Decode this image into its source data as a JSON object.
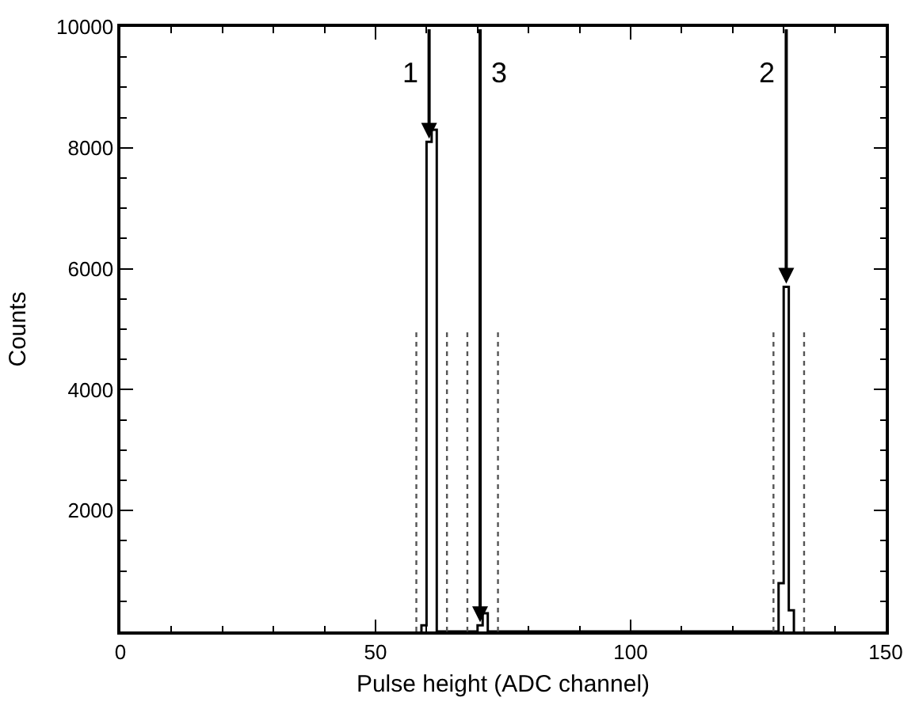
{
  "chart_data": {
    "type": "histogram",
    "xlabel": "Pulse height (ADC channel)",
    "ylabel": "Counts",
    "bins": [
      59,
      60,
      61,
      62,
      63,
      64,
      65,
      66,
      67,
      68,
      69,
      70,
      71,
      72,
      73,
      74,
      75,
      76,
      77,
      78,
      79,
      80,
      81,
      82,
      83,
      84,
      85,
      86,
      87,
      88,
      89,
      90,
      91,
      92,
      93,
      94,
      95,
      96,
      97,
      98,
      99,
      100,
      101,
      102,
      103,
      104,
      105,
      106,
      107,
      108,
      109,
      110,
      111,
      112,
      113,
      114,
      115,
      116,
      117,
      118,
      119,
      120,
      121,
      122,
      123,
      124,
      125,
      126,
      127,
      128,
      129,
      130,
      131,
      132
    ],
    "values": [
      100,
      8100,
      8300,
      0,
      0,
      0,
      0,
      0,
      0,
      0,
      0,
      100,
      300,
      0,
      0,
      0,
      0,
      0,
      0,
      0,
      0,
      0,
      0,
      0,
      0,
      0,
      0,
      0,
      0,
      0,
      0,
      0,
      0,
      0,
      0,
      0,
      0,
      0,
      0,
      0,
      0,
      0,
      0,
      0,
      0,
      0,
      0,
      0,
      0,
      0,
      0,
      0,
      0,
      0,
      0,
      0,
      0,
      0,
      0,
      0,
      0,
      0,
      0,
      0,
      0,
      0,
      0,
      0,
      0,
      0,
      800,
      5700,
      350
    ],
    "color": "#000000",
    "series": [
      {
        "type": "line",
        "color": "#555555",
        "line_style": "dotted",
        "x": [
          58,
          58,
          null,
          64,
          64,
          null,
          68,
          68,
          null,
          74,
          74,
          null,
          128,
          128,
          null,
          134,
          134
        ],
        "values": [
          0,
          5000,
          null,
          0,
          5000,
          null,
          0,
          5000,
          null,
          0,
          5000,
          null,
          0,
          5000,
          null,
          0,
          5000
        ]
      }
    ],
    "annotations": [
      {
        "text": "1",
        "x": 60.5,
        "y": 8100
      },
      {
        "text": "3",
        "x": 70.5,
        "y": 100
      },
      {
        "text": "2",
        "x": 130.5,
        "y": 5700
      }
    ],
    "xlim": [
      0,
      150
    ],
    "xticks": [
      0,
      50,
      100,
      150
    ],
    "ylim": [
      0,
      10000
    ],
    "yticks": [
      2000,
      4000,
      6000,
      8000,
      10000
    ]
  }
}
